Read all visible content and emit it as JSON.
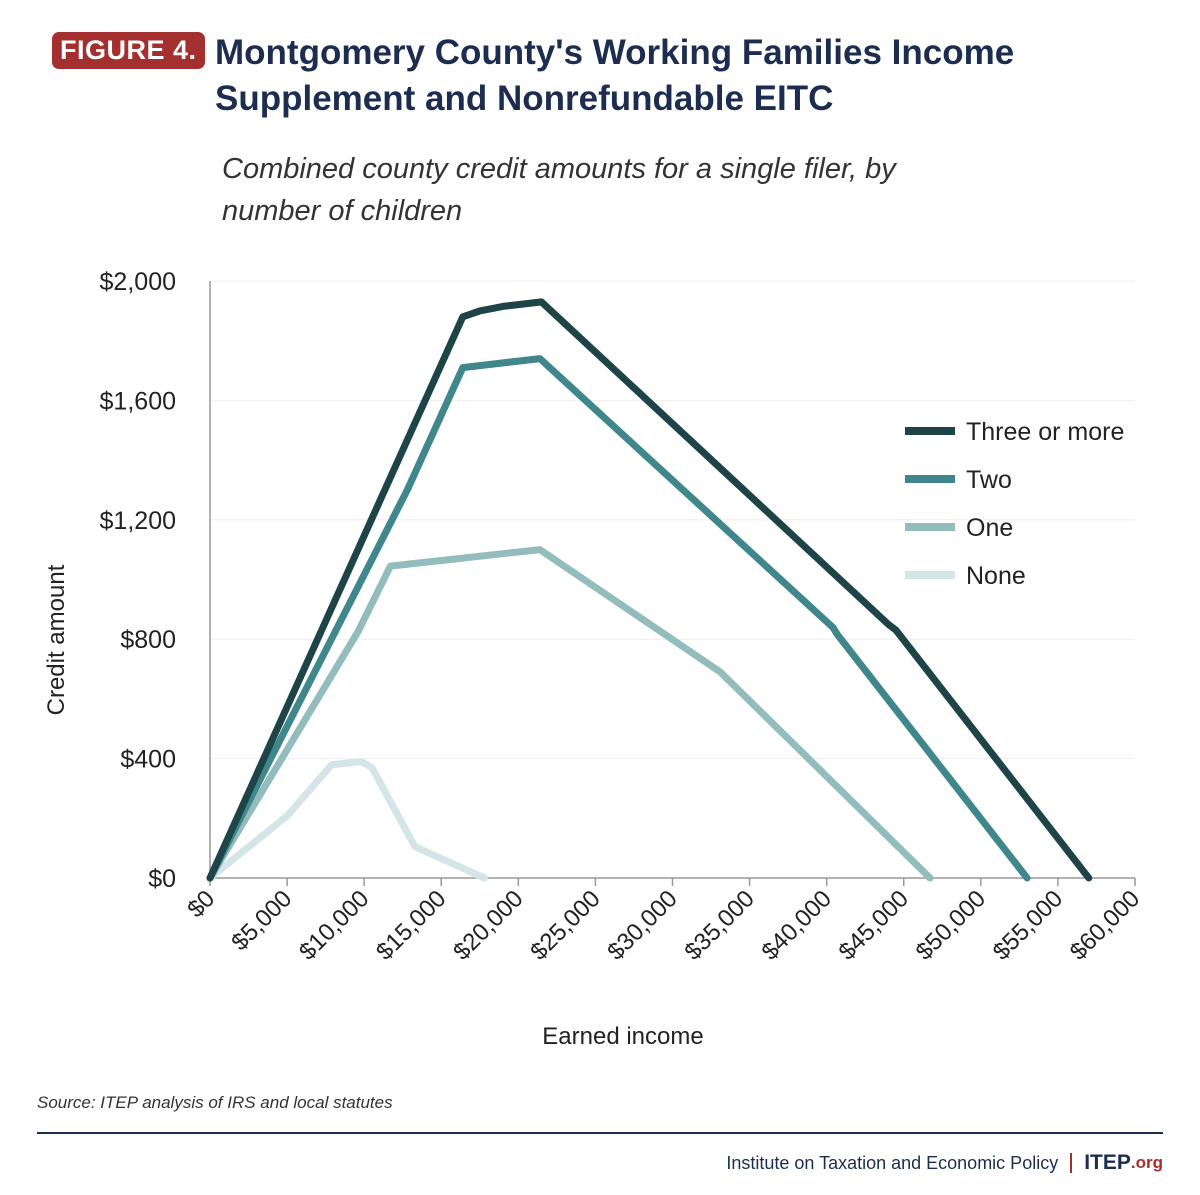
{
  "figure_label": "FIGURE 4.",
  "chart_data": {
    "type": "line",
    "title": "Montgomery County's Working Families Income Supplement and Nonrefundable EITC",
    "subtitle": "Combined county credit amounts for a single filer, by number of children",
    "xlabel": "Earned income",
    "ylabel": "Credit amount",
    "xlim": [
      0,
      60000
    ],
    "ylim": [
      0,
      2000
    ],
    "xticks": [
      {
        "value": 0,
        "label": "$0"
      },
      {
        "value": 5000,
        "label": "$5,000"
      },
      {
        "value": 10000,
        "label": "$10,000"
      },
      {
        "value": 15000,
        "label": "$15,000"
      },
      {
        "value": 20000,
        "label": "$20,000"
      },
      {
        "value": 25000,
        "label": "$25,000"
      },
      {
        "value": 30000,
        "label": "$30,000"
      },
      {
        "value": 35000,
        "label": "$35,000"
      },
      {
        "value": 40000,
        "label": "$40,000"
      },
      {
        "value": 45000,
        "label": "$45,000"
      },
      {
        "value": 50000,
        "label": "$50,000"
      },
      {
        "value": 55000,
        "label": "$55,000"
      },
      {
        "value": 60000,
        "label": "$60,000"
      }
    ],
    "yticks": [
      {
        "value": 0,
        "label": "$0"
      },
      {
        "value": 400,
        "label": "$400"
      },
      {
        "value": 800,
        "label": "$800"
      },
      {
        "value": 1200,
        "label": "$1,200"
      },
      {
        "value": 1600,
        "label": "$1,600"
      },
      {
        "value": 2000,
        "label": "$2,000"
      }
    ],
    "grid": true,
    "series": [
      {
        "name": "Three or more",
        "color": "#1f4447",
        "x": [
          0,
          16400,
          17500,
          19000,
          21500,
          44000,
          44500,
          57000
        ],
        "values": [
          0,
          1880,
          1900,
          1915,
          1930,
          850,
          830,
          0
        ]
      },
      {
        "name": "Two",
        "color": "#3f878a",
        "x": [
          0,
          12800,
          16400,
          21400,
          40400,
          40700,
          53000
        ],
        "values": [
          0,
          1300,
          1710,
          1740,
          840,
          815,
          0
        ]
      },
      {
        "name": "One",
        "color": "#93bcbc",
        "x": [
          0,
          9600,
          11700,
          21400,
          33100,
          46700
        ],
        "values": [
          0,
          825,
          1045,
          1100,
          690,
          0
        ]
      },
      {
        "name": "None",
        "color": "#d3e5e6",
        "x": [
          0,
          5000,
          7900,
          9800,
          10500,
          13300,
          17800
        ],
        "values": [
          0,
          208,
          380,
          390,
          370,
          105,
          0
        ]
      }
    ]
  },
  "source": "Source: ITEP analysis of IRS and local statutes",
  "footer": {
    "organization": "Institute on Taxation and Economic Policy",
    "brand": "ITEP",
    "domain": ".org"
  }
}
